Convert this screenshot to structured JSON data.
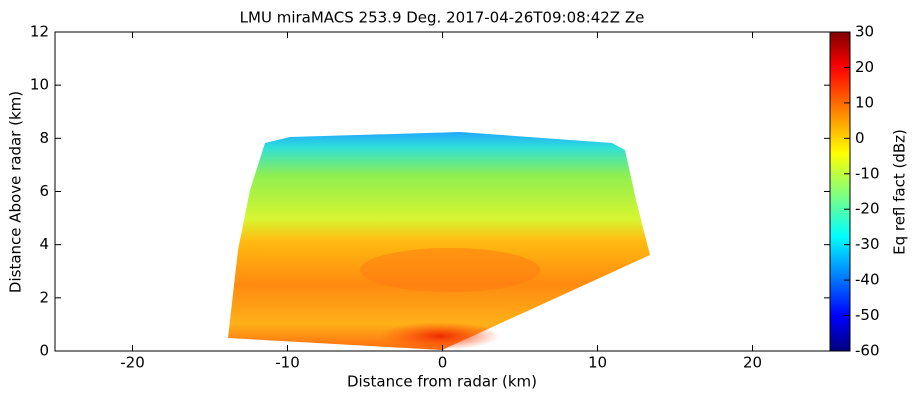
{
  "chart_data": {
    "type": "image",
    "title": "LMU miraMACS 253.9 Deg. 2017-04-26T09:08:42Z  Ze",
    "xlabel": "Distance from radar (km)",
    "ylabel": "Distance Above radar  (km)",
    "xlim": [
      -25,
      25
    ],
    "xticks": [
      -20,
      -10,
      0,
      10,
      20
    ],
    "ylim": [
      0,
      12
    ],
    "yticks": [
      0,
      2,
      4,
      6,
      8,
      10,
      12
    ],
    "colorbar": {
      "label": "Eq refl fact (dBz)",
      "lim": [
        -60,
        30
      ],
      "ticks": [
        -60,
        -50,
        -40,
        -30,
        -20,
        -10,
        0,
        10,
        20,
        30
      ],
      "colormap": "jet"
    }
  }
}
